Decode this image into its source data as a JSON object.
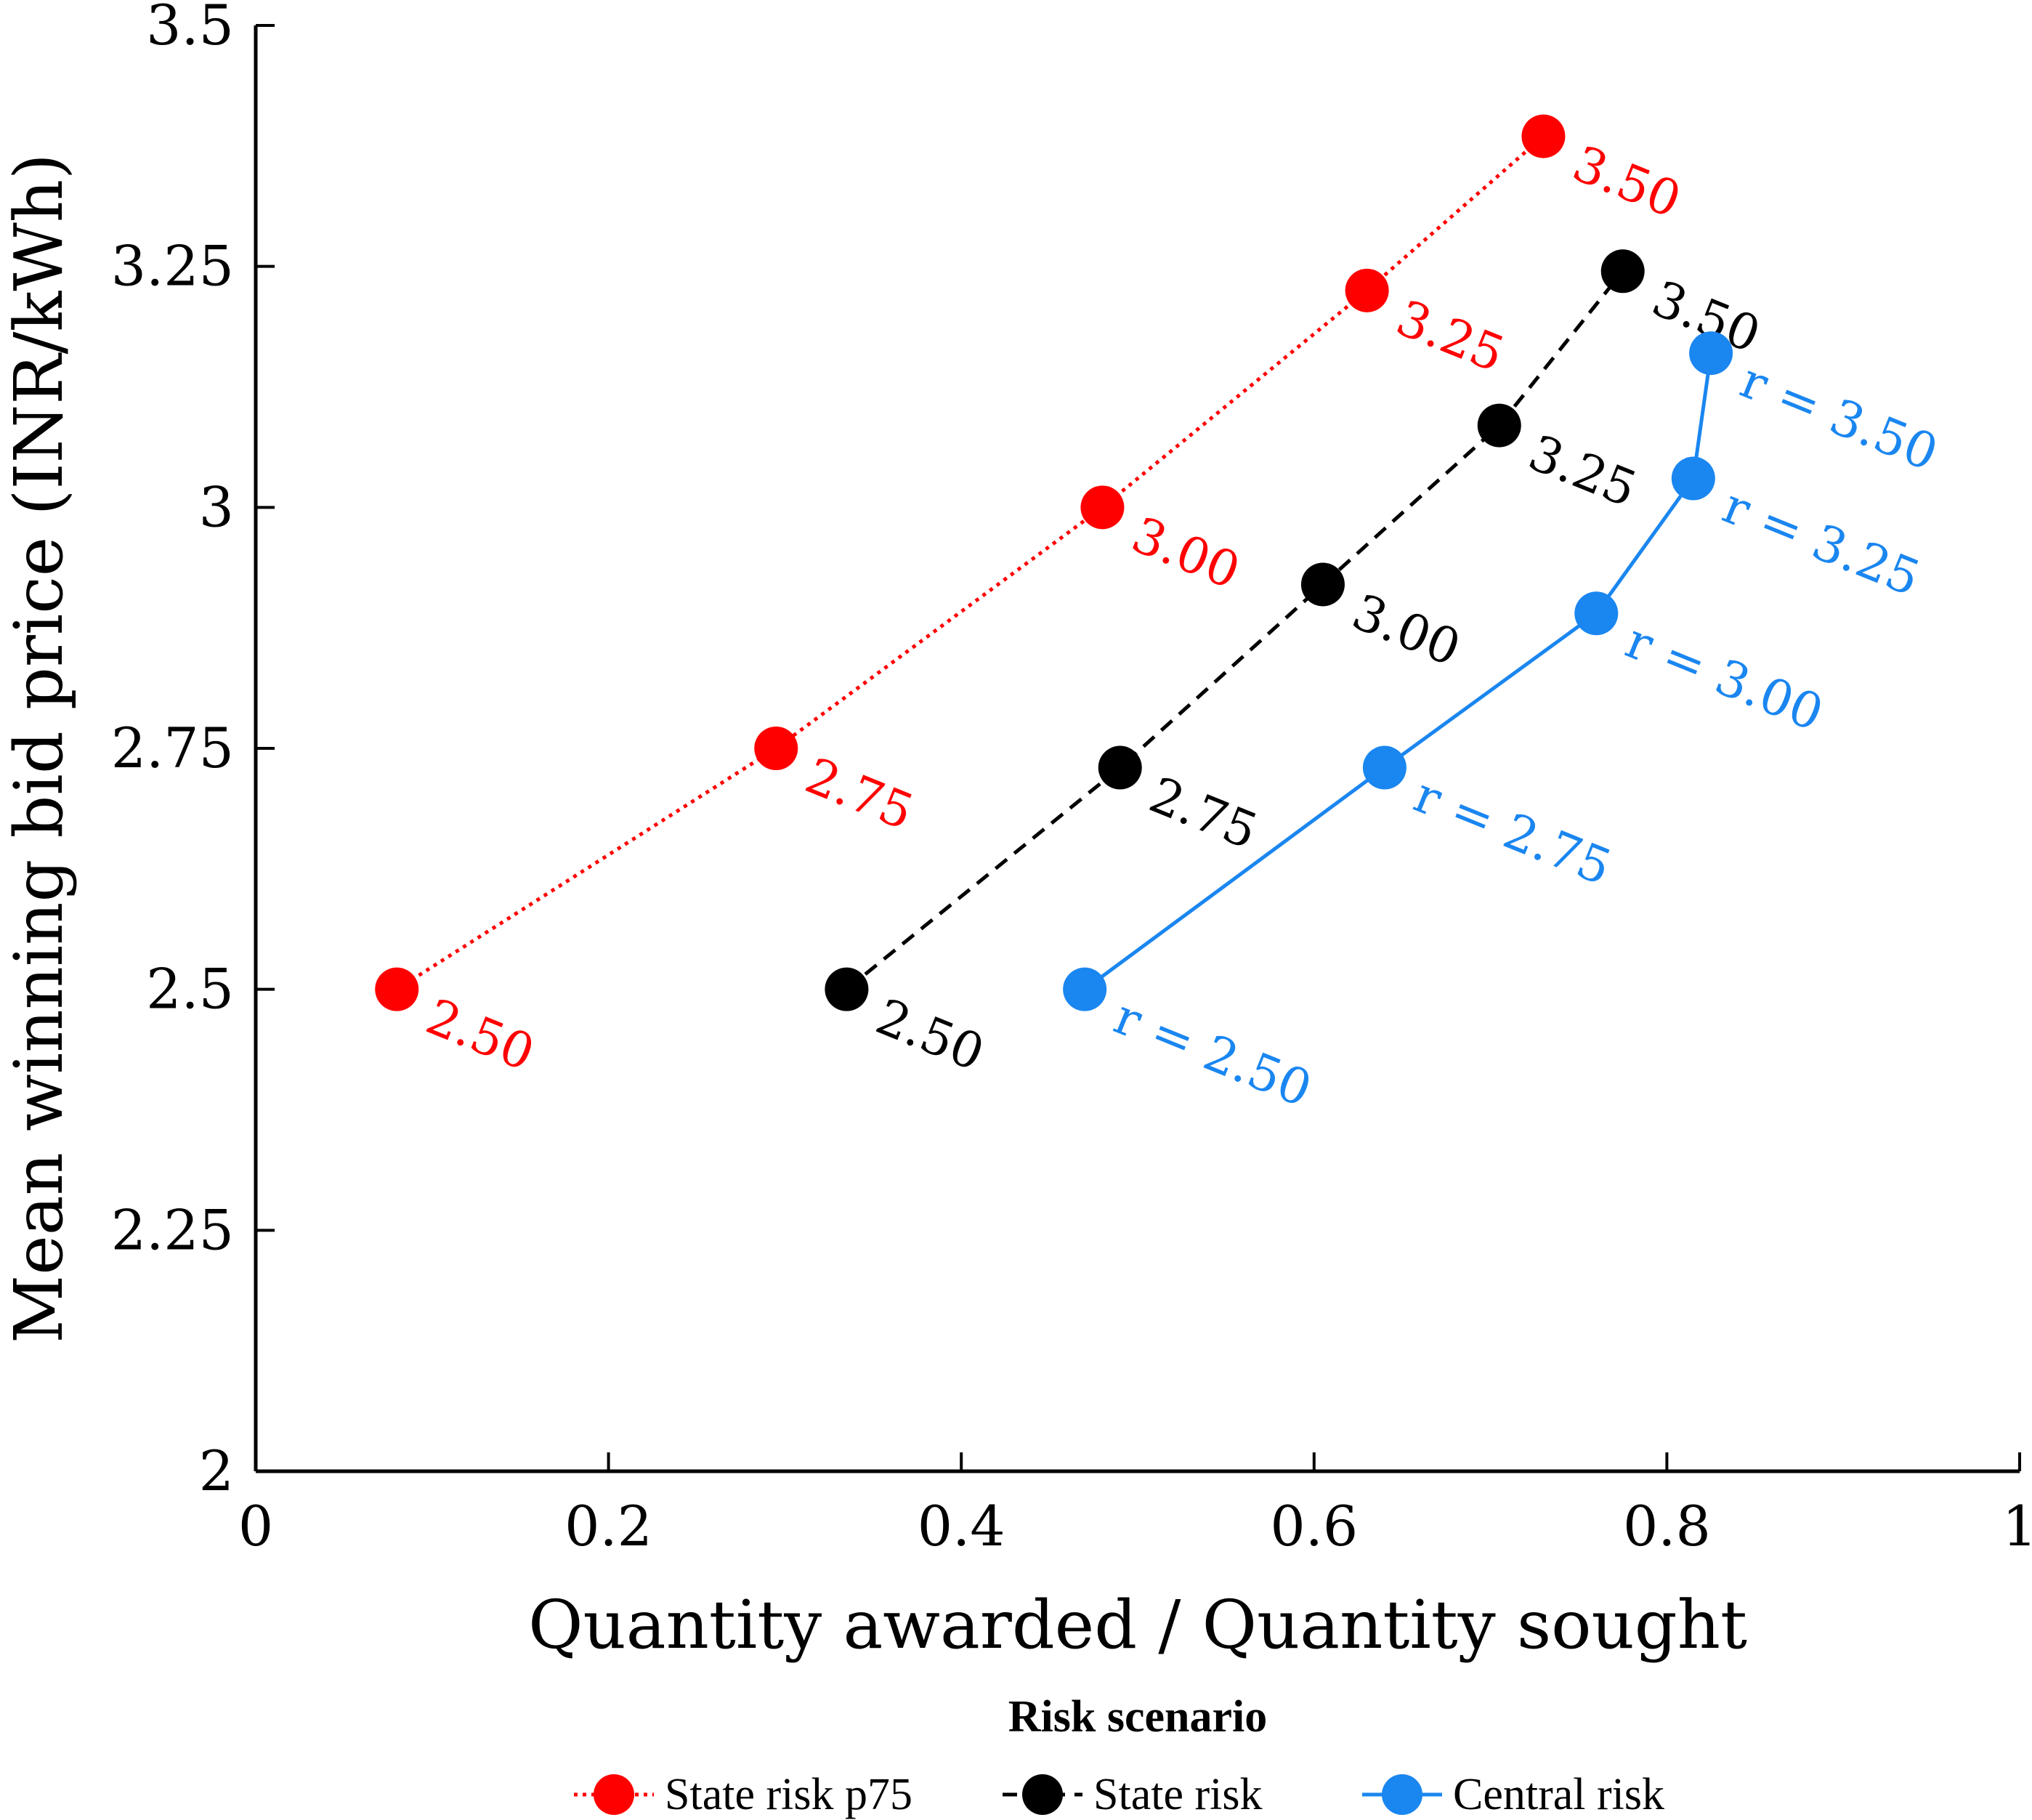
{
  "chart_data": {
    "type": "line",
    "title": "",
    "xlabel": "Quantity awarded / Quantity sought",
    "ylabel": "Mean winning bid price (INR/kWh)",
    "xlim": [
      0,
      1
    ],
    "ylim": [
      2,
      3.5
    ],
    "xticks": [
      0,
      0.2,
      0.4,
      0.6,
      0.8,
      1
    ],
    "xtick_labels": [
      "0",
      "0.2",
      "0.4",
      "0.6",
      "0.8",
      "1"
    ],
    "yticks": [
      2,
      2.25,
      2.5,
      2.75,
      3,
      3.25,
      3.5
    ],
    "ytick_labels": [
      "2",
      "2.25",
      "2.5",
      "2.75",
      "3",
      "3.25",
      "3.5"
    ],
    "grid": false,
    "legend": {
      "title": "Risk scenario",
      "placement": "bottom"
    },
    "series": [
      {
        "name": "State risk p75",
        "color": "#ff0000",
        "line_style": "dotted",
        "points": [
          {
            "x": 0.08,
            "y": 2.5,
            "label": "2.50"
          },
          {
            "x": 0.295,
            "y": 2.75,
            "label": "2.75"
          },
          {
            "x": 0.48,
            "y": 3.0,
            "label": "3.00"
          },
          {
            "x": 0.63,
            "y": 3.225,
            "label": "3.25"
          },
          {
            "x": 0.73,
            "y": 3.385,
            "label": "3.50"
          }
        ]
      },
      {
        "name": "State risk",
        "color": "#000000",
        "line_style": "dashed",
        "points": [
          {
            "x": 0.335,
            "y": 2.5,
            "label": "2.50"
          },
          {
            "x": 0.49,
            "y": 2.73,
            "label": "2.75"
          },
          {
            "x": 0.605,
            "y": 2.92,
            "label": "3.00"
          },
          {
            "x": 0.705,
            "y": 3.085,
            "label": "3.25"
          },
          {
            "x": 0.775,
            "y": 3.245,
            "label": "3.50"
          }
        ]
      },
      {
        "name": "Central risk",
        "color": "#1a86f0",
        "line_style": "solid",
        "points": [
          {
            "x": 0.47,
            "y": 2.5,
            "label": "r = 2.50"
          },
          {
            "x": 0.64,
            "y": 2.73,
            "label": "r = 2.75"
          },
          {
            "x": 0.76,
            "y": 2.89,
            "label": "r = 3.00"
          },
          {
            "x": 0.815,
            "y": 3.03,
            "label": "r = 3.25"
          },
          {
            "x": 0.825,
            "y": 3.16,
            "label": "r = 3.50"
          }
        ]
      }
    ]
  }
}
